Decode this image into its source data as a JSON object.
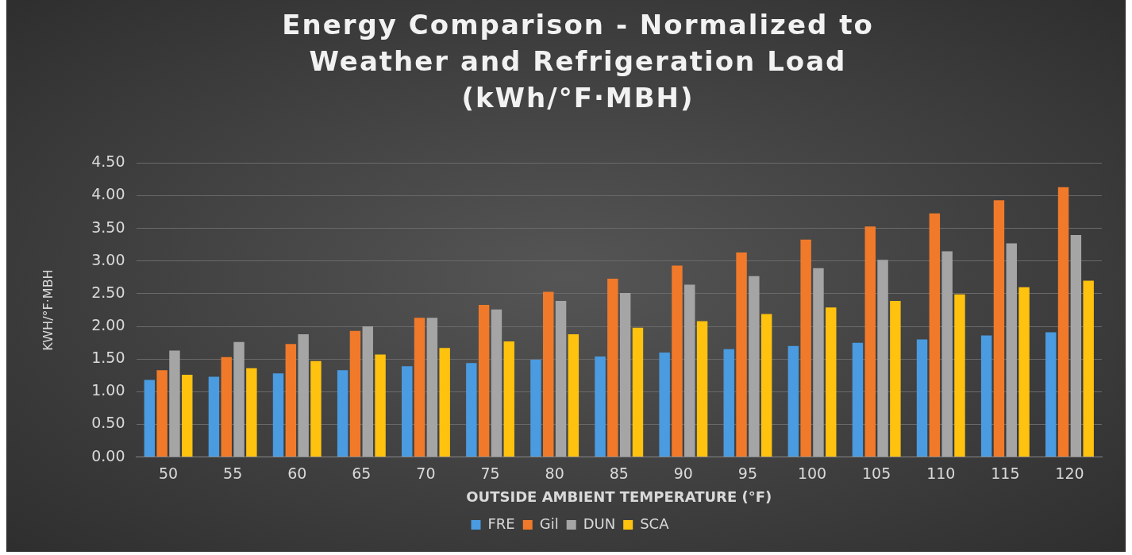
{
  "chart_data": {
    "type": "bar",
    "title": "Energy Comparison - Normalized to Weather and Refrigeration Load (kWh/°F·MBH)",
    "xlabel": "OUTSIDE AMBIENT TEMPERATURE (°F)",
    "ylabel": "KWH/°F·MBH",
    "categories": [
      "50",
      "55",
      "60",
      "65",
      "70",
      "75",
      "80",
      "85",
      "90",
      "95",
      "100",
      "105",
      "110",
      "115",
      "120"
    ],
    "series": [
      {
        "name": "FRE",
        "color": "#4a9be0",
        "values": [
          1.18,
          1.23,
          1.28,
          1.33,
          1.39,
          1.44,
          1.49,
          1.54,
          1.6,
          1.65,
          1.7,
          1.75,
          1.8,
          1.86,
          1.91
        ]
      },
      {
        "name": "Gil",
        "color": "#f07a2a",
        "values": [
          1.33,
          1.53,
          1.73,
          1.93,
          2.13,
          2.33,
          2.53,
          2.73,
          2.93,
          3.13,
          3.33,
          3.53,
          3.73,
          3.93,
          4.13
        ]
      },
      {
        "name": "DUN",
        "color": "#a5a5a5",
        "values": [
          1.63,
          1.76,
          1.88,
          2.0,
          2.13,
          2.26,
          2.39,
          2.51,
          2.64,
          2.77,
          2.89,
          3.02,
          3.15,
          3.27,
          3.4
        ]
      },
      {
        "name": "SCA",
        "color": "#ffc20e",
        "values": [
          1.26,
          1.36,
          1.47,
          1.57,
          1.67,
          1.77,
          1.88,
          1.98,
          2.08,
          2.19,
          2.29,
          2.39,
          2.49,
          2.6,
          2.7
        ]
      }
    ],
    "ylim": [
      0,
      4.5
    ],
    "yticks": [
      {
        "value": 0,
        "label": "0.00"
      },
      {
        "value": 0.5,
        "label": "0.50"
      },
      {
        "value": 1,
        "label": "1.00"
      },
      {
        "value": 1.5,
        "label": "1.50"
      },
      {
        "value": 2,
        "label": "2.00"
      },
      {
        "value": 2.5,
        "label": "2.50"
      },
      {
        "value": 3,
        "label": "3.00"
      },
      {
        "value": 3.5,
        "label": "3.50"
      },
      {
        "value": 4,
        "label": "4.00"
      },
      {
        "value": 4.5,
        "label": "4.50"
      }
    ],
    "grid": "y",
    "legend": "bottom"
  }
}
